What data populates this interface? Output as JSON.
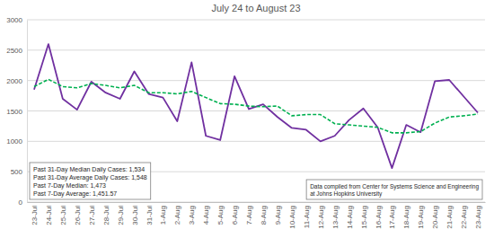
{
  "chart_data": {
    "type": "line",
    "title": "July 24 to August 23",
    "categories": [
      "23-Jul",
      "24-Jul",
      "25-Jul",
      "26-Jul",
      "27-Jul",
      "28-Jul",
      "29-Jul",
      "30-Jul",
      "31-Jul",
      "1-Aug",
      "2-Aug",
      "3-Aug",
      "4-Aug",
      "5-Aug",
      "6-Aug",
      "7-Aug",
      "8-Aug",
      "9-Aug",
      "10-Aug",
      "11-Aug",
      "12-Aug",
      "13-Aug",
      "14-Aug",
      "15-Aug",
      "16-Aug",
      "17-Aug",
      "18-Aug",
      "19-Aug",
      "20-Aug",
      "21-Aug",
      "22-Aug",
      "23-Aug"
    ],
    "series": [
      {
        "color": "#7030a0",
        "line_style": "solid",
        "values": [
          1850,
          2600,
          1700,
          1520,
          1980,
          1800,
          1700,
          2150,
          1780,
          1720,
          1330,
          2300,
          1090,
          1020,
          2070,
          1530,
          1610,
          1400,
          1220,
          1190,
          1000,
          1090,
          1350,
          1540,
          1230,
          560,
          1270,
          1150,
          1990,
          2010,
          1740,
          1470
        ]
      },
      {
        "color": "#00b050",
        "line_style": "dashed",
        "values": [
          1900,
          2020,
          1900,
          1880,
          1950,
          1920,
          1880,
          1920,
          1800,
          1800,
          1780,
          1820,
          1720,
          1620,
          1610,
          1580,
          1570,
          1580,
          1420,
          1440,
          1440,
          1290,
          1270,
          1250,
          1230,
          1140,
          1140,
          1160,
          1300,
          1400,
          1420,
          1450
        ]
      }
    ],
    "ylim": [
      0,
      3000
    ],
    "yticks": [
      0,
      500,
      1000,
      1500,
      2000,
      2500,
      3000
    ],
    "grid": true,
    "annotations": [
      [
        "Past 31-Day Median Daily Cases: 1,534",
        "Past 31-Day Average Daily Cases: 1,548",
        "Past 7-Day Median: 1,473",
        "Past 7-Day Average: 1,451.57"
      ],
      [
        "Data compiled from Center for Systems Science and Engineering",
        "at Johns Hopkins University"
      ]
    ]
  }
}
